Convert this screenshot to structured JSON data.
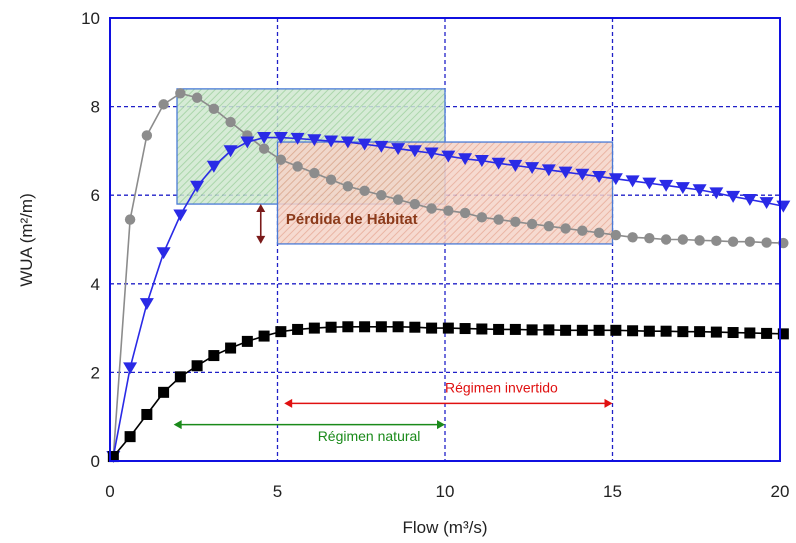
{
  "chart_data": {
    "type": "line",
    "title": "",
    "xlabel": "Flow (m³/s)",
    "ylabel": "WUA (m²/m)",
    "xlim": [
      0,
      20
    ],
    "ylim": [
      0,
      10
    ],
    "xticks": [
      0,
      5,
      10,
      15,
      20
    ],
    "yticks": [
      0,
      2,
      4,
      6,
      8,
      10
    ],
    "grid": true,
    "legend": "none",
    "series": [
      {
        "marker": "circle",
        "color": "#8c8c8c",
        "x": [
          0.1,
          0.6,
          1.1,
          1.6,
          2.1,
          2.6,
          3.1,
          3.6,
          4.1,
          4.6,
          5.1,
          5.6,
          6.1,
          6.6,
          7.1,
          7.6,
          8.1,
          8.6,
          9.1,
          9.6,
          10.1,
          10.6,
          11.1,
          11.6,
          12.1,
          12.6,
          13.1,
          13.6,
          14.1,
          14.6,
          15.1,
          15.6,
          16.1,
          16.6,
          17.1,
          17.6,
          18.1,
          18.6,
          19.1,
          19.6,
          20.1
        ],
        "y": [
          0.1,
          5.45,
          7.35,
          8.05,
          8.3,
          8.2,
          7.95,
          7.65,
          7.35,
          7.05,
          6.8,
          6.65,
          6.5,
          6.35,
          6.2,
          6.1,
          6.0,
          5.9,
          5.8,
          5.7,
          5.65,
          5.6,
          5.5,
          5.45,
          5.4,
          5.35,
          5.3,
          5.25,
          5.2,
          5.15,
          5.1,
          5.05,
          5.03,
          5.0,
          5.0,
          4.98,
          4.97,
          4.95,
          4.95,
          4.93,
          4.92
        ]
      },
      {
        "marker": "triangle-down",
        "color": "#2a2ae6",
        "x": [
          0.1,
          0.6,
          1.1,
          1.6,
          2.1,
          2.6,
          3.1,
          3.6,
          4.1,
          4.6,
          5.1,
          5.6,
          6.1,
          6.6,
          7.1,
          7.6,
          8.1,
          8.6,
          9.1,
          9.6,
          10.1,
          10.6,
          11.1,
          11.6,
          12.1,
          12.6,
          13.1,
          13.6,
          14.1,
          14.6,
          15.1,
          15.6,
          16.1,
          16.6,
          17.1,
          17.6,
          18.1,
          18.6,
          19.1,
          19.6,
          20.1
        ],
        "y": [
          0.1,
          2.1,
          3.55,
          4.7,
          5.55,
          6.2,
          6.65,
          7.0,
          7.2,
          7.3,
          7.3,
          7.28,
          7.25,
          7.22,
          7.2,
          7.15,
          7.1,
          7.05,
          7.0,
          6.95,
          6.88,
          6.82,
          6.78,
          6.72,
          6.67,
          6.62,
          6.57,
          6.52,
          6.47,
          6.42,
          6.37,
          6.32,
          6.27,
          6.22,
          6.17,
          6.12,
          6.05,
          5.97,
          5.9,
          5.83,
          5.75
        ]
      },
      {
        "marker": "square",
        "color": "#000000",
        "x": [
          0.1,
          0.6,
          1.1,
          1.6,
          2.1,
          2.6,
          3.1,
          3.6,
          4.1,
          4.6,
          5.1,
          5.6,
          6.1,
          6.6,
          7.1,
          7.6,
          8.1,
          8.6,
          9.1,
          9.6,
          10.1,
          10.6,
          11.1,
          11.6,
          12.1,
          12.6,
          13.1,
          13.6,
          14.1,
          14.6,
          15.1,
          15.6,
          16.1,
          16.6,
          17.1,
          17.6,
          18.1,
          18.6,
          19.1,
          19.6,
          20.1
        ],
        "y": [
          0.1,
          0.55,
          1.05,
          1.55,
          1.9,
          2.15,
          2.38,
          2.55,
          2.7,
          2.82,
          2.92,
          2.97,
          3.0,
          3.02,
          3.03,
          3.03,
          3.03,
          3.03,
          3.02,
          3.0,
          3.0,
          2.99,
          2.98,
          2.97,
          2.97,
          2.96,
          2.96,
          2.95,
          2.95,
          2.95,
          2.95,
          2.94,
          2.93,
          2.93,
          2.92,
          2.92,
          2.91,
          2.9,
          2.89,
          2.88,
          2.87
        ]
      }
    ],
    "regions": [
      {
        "name": "natural",
        "x0": 2.0,
        "x1": 10.0,
        "y0": 5.8,
        "y1": 8.4,
        "fill": "#cfe8cf",
        "hatch": "#9ccf9c",
        "stroke": "#4a7bd6"
      },
      {
        "name": "invertido",
        "x0": 5.0,
        "x1": 15.0,
        "y0": 4.9,
        "y1": 7.2,
        "fill": "#f5d3c8",
        "hatch": "#e6a894",
        "stroke": "#4a7bd6"
      }
    ],
    "annotations": [
      {
        "text": "Pérdida de Hábitat",
        "x": 5.25,
        "y": 5.35,
        "color": "#8b3a1a",
        "arrow_x": 4.5,
        "arrow_y0": 5.8,
        "arrow_y1": 4.9,
        "arrow_color": "#7a1a1a"
      },
      {
        "text": "Régimen invertido",
        "x": 10.0,
        "y": 1.55,
        "color": "#e01010",
        "arrow_x0": 5.2,
        "arrow_x1": 15.0,
        "arrow_y": 1.3
      },
      {
        "text": "Régimen natural",
        "x": 6.2,
        "y": 0.45,
        "color": "#1a8a1a",
        "arrow_x0": 1.9,
        "arrow_x1": 10.0,
        "arrow_y": 0.82
      }
    ]
  }
}
